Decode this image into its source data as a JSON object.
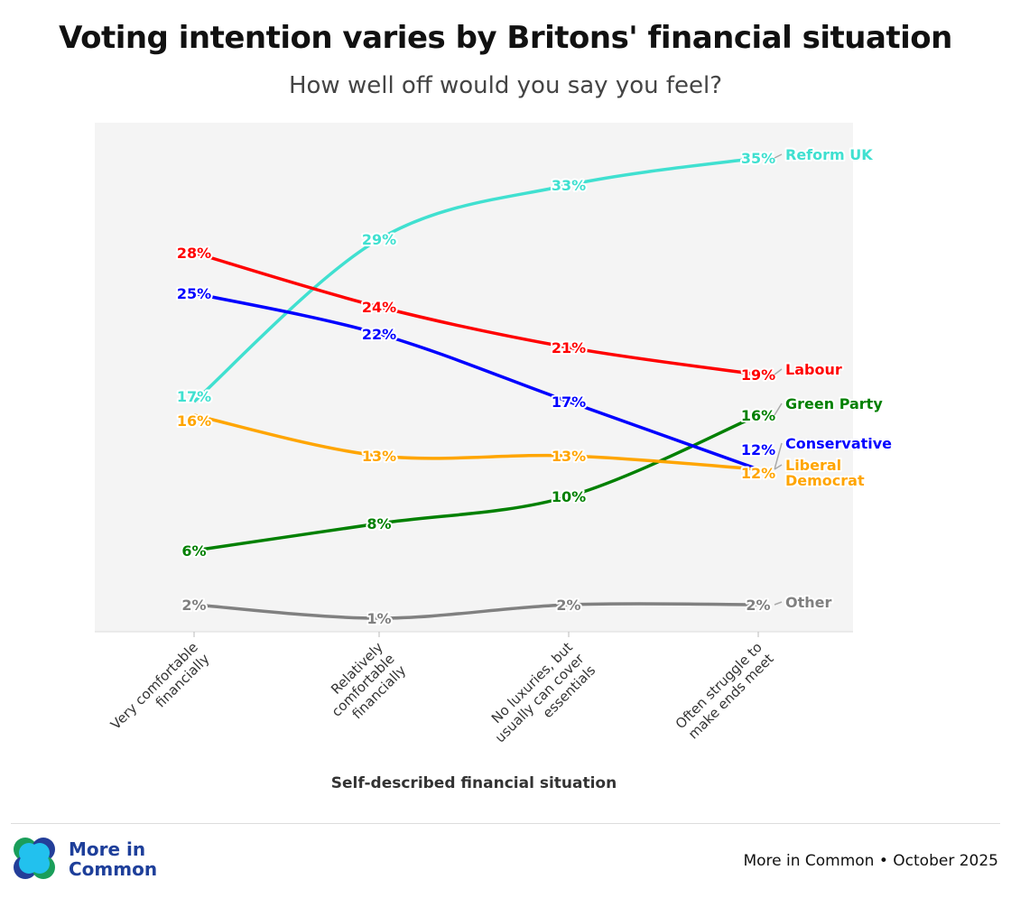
{
  "chart_data": {
    "type": "line",
    "title": "Voting intention varies by Britons' financial situation",
    "subtitle": "How well off would you say you feel?",
    "xlabel": "Self-described financial situation",
    "categories": [
      [
        "Very comfortable",
        "financially"
      ],
      [
        "Relatively",
        "comfortable",
        "financially"
      ],
      [
        "No luxuries, but",
        "usually can cover",
        "essentials"
      ],
      [
        "Often struggle to",
        "make ends meet"
      ]
    ],
    "ylim": [
      0,
      37
    ],
    "grid": false,
    "legend": "direct labels at right end of lines",
    "series": [
      {
        "name": "Reform UK",
        "color": "#40e0d0",
        "values": [
          17,
          29,
          33,
          35
        ]
      },
      {
        "name": "Labour",
        "color": "#ff0000",
        "values": [
          28,
          24,
          21,
          19
        ]
      },
      {
        "name": "Green Party",
        "color": "#008000",
        "values": [
          6,
          8,
          10,
          16
        ]
      },
      {
        "name": "Conservative",
        "color": "#0000ff",
        "values": [
          25,
          22,
          17,
          12
        ]
      },
      {
        "name": "Liberal Democrat",
        "color": "#ffa500",
        "values": [
          16,
          13,
          13,
          12
        ]
      },
      {
        "name": "Other",
        "color": "#808080",
        "values": [
          2,
          1,
          2,
          2
        ]
      }
    ]
  },
  "footer": {
    "brand": [
      "More in",
      "Common"
    ],
    "source": "More in Common • October 2025"
  }
}
